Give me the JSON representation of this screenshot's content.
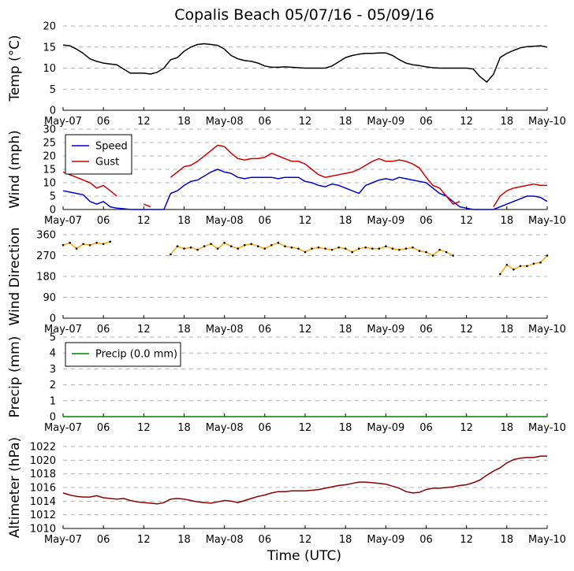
{
  "chart_data": {
    "type": "line",
    "title": "Copalis Beach 05/07/16 - 05/09/16",
    "xlabel": "Time (UTC)",
    "x_ticks": [
      "May-07",
      "06",
      "12",
      "18",
      "May-08",
      "06",
      "12",
      "18",
      "May-09",
      "06",
      "12",
      "18",
      "May-10"
    ],
    "x_tick_hours": [
      0,
      6,
      12,
      18,
      24,
      30,
      36,
      42,
      48,
      54,
      60,
      66,
      72
    ],
    "x_range_hours": [
      0,
      72
    ],
    "panels": [
      {
        "id": "temp",
        "ylabel": "Temp (°C)",
        "ylim": [
          0,
          20
        ],
        "yticks": [
          "0",
          "5",
          "10",
          "15",
          "20"
        ],
        "ytick_values": [
          0,
          5,
          10,
          15,
          20
        ],
        "series": [
          {
            "name": "Temp",
            "color": "#000000",
            "x": [
              0,
              1,
              2,
              3,
              4,
              5,
              6,
              7,
              8,
              9,
              10,
              11,
              12,
              13,
              14,
              15,
              16,
              17,
              18,
              19,
              20,
              21,
              22,
              23,
              24,
              25,
              26,
              27,
              28,
              29,
              30,
              31,
              32,
              33,
              34,
              35,
              36,
              37,
              38,
              39,
              40,
              41,
              42,
              43,
              44,
              45,
              46,
              47,
              48,
              49,
              50,
              51,
              52,
              53,
              54,
              55,
              56,
              57,
              58,
              59,
              60,
              61,
              62,
              63,
              64,
              65,
              66,
              67,
              68,
              69,
              70,
              71,
              72
            ],
            "y": [
              15.5,
              15.3,
              14.5,
              13.5,
              12.2,
              11.6,
              11.2,
              11,
              10.8,
              9.8,
              8.8,
              8.8,
              8.8,
              8.6,
              9,
              10,
              12,
              12.5,
              14,
              15,
              15.6,
              15.8,
              15.6,
              15.4,
              14.5,
              13,
              12.2,
              11.8,
              11.6,
              11.2,
              10.5,
              10.2,
              10.2,
              10.3,
              10.2,
              10.1,
              10,
              10,
              10,
              10,
              10.5,
              11.5,
              12.5,
              13,
              13.3,
              13.5,
              13.5,
              13.6,
              13.6,
              13,
              12,
              11.2,
              10.8,
              10.6,
              10.3,
              10.1,
              10,
              10,
              10,
              10,
              10,
              9.8,
              8,
              6.7,
              8.5,
              12.5,
              13.5,
              14.2,
              14.8,
              15.1,
              15.2,
              15.3,
              15
            ]
          }
        ]
      },
      {
        "id": "wind",
        "ylabel": "Wind (mph)",
        "ylim": [
          0,
          30
        ],
        "yticks": [
          "0",
          "5",
          "10",
          "15",
          "20",
          "25",
          "30"
        ],
        "ytick_values": [
          0,
          5,
          10,
          15,
          20,
          25,
          30
        ],
        "legend": {
          "location": "upper-left",
          "entries": [
            "Speed",
            "Gust"
          ]
        },
        "series": [
          {
            "name": "Speed",
            "color": "#0000cc",
            "x": [
              0,
              1,
              2,
              3,
              4,
              5,
              6,
              7,
              8,
              9,
              10,
              11,
              12,
              13,
              14,
              15,
              16,
              17,
              18,
              19,
              20,
              21,
              22,
              23,
              24,
              25,
              26,
              27,
              28,
              29,
              30,
              31,
              32,
              33,
              34,
              35,
              36,
              37,
              38,
              39,
              40,
              41,
              42,
              43,
              44,
              45,
              46,
              47,
              48,
              49,
              50,
              51,
              52,
              53,
              54,
              55,
              56,
              57,
              58,
              59,
              60,
              61,
              62,
              63,
              64,
              65,
              66,
              67,
              68,
              69,
              70,
              71,
              72
            ],
            "y": [
              7,
              6.5,
              6,
              5.5,
              3,
              2,
              3,
              1,
              0.5,
              0.3,
              0,
              0,
              0,
              0,
              0,
              0,
              6,
              7,
              9,
              10.5,
              11,
              12.5,
              14,
              15,
              14,
              13.5,
              12,
              11.5,
              12,
              12,
              12,
              12,
              11.5,
              12,
              12,
              12,
              10.5,
              10,
              9,
              8.5,
              9.5,
              9,
              8,
              7,
              6,
              9,
              10,
              11,
              11.5,
              11,
              12,
              11.5,
              11,
              10.5,
              10,
              8,
              6,
              5,
              3,
              1,
              0.5,
              0,
              0,
              0,
              0,
              1,
              2,
              3,
              4,
              5,
              5,
              4.5,
              3
            ]
          },
          {
            "name": "Gust",
            "color": "#cc0000",
            "x": [
              0,
              1,
              2,
              3,
              4,
              5,
              6,
              7,
              8,
              9,
              10,
              11,
              12,
              13,
              14,
              15,
              16,
              17,
              18,
              19,
              20,
              21,
              22,
              23,
              24,
              25,
              26,
              27,
              28,
              29,
              30,
              31,
              32,
              33,
              34,
              35,
              36,
              37,
              38,
              39,
              40,
              41,
              42,
              43,
              44,
              45,
              46,
              47,
              48,
              49,
              50,
              51,
              52,
              53,
              54,
              55,
              56,
              57,
              58,
              59,
              60,
              61,
              62,
              63,
              64,
              65,
              66,
              67,
              68,
              69,
              70,
              71,
              72
            ],
            "y": [
              14,
              13,
              12,
              11,
              10,
              8,
              9,
              7,
              5,
              null,
              null,
              null,
              2,
              1,
              null,
              null,
              12,
              14,
              16,
              16.5,
              18,
              20,
              22,
              24,
              23.5,
              21,
              19,
              18.5,
              19,
              19,
              19.5,
              21,
              20,
              19,
              18,
              18,
              17,
              15,
              13,
              12,
              12.5,
              13,
              13.5,
              14,
              15,
              16.5,
              18,
              19,
              18,
              18,
              18.5,
              18,
              17,
              15.5,
              12,
              9,
              8,
              5,
              2,
              3,
              null,
              null,
              null,
              null,
              1,
              5,
              7,
              8,
              8.5,
              9,
              9.5,
              9,
              9
            ]
          }
        ]
      },
      {
        "id": "wdir",
        "ylabel": "Wind Direction",
        "ylim": [
          0,
          360
        ],
        "yticks": [
          "0",
          "90",
          "180",
          "270",
          "360"
        ],
        "ytick_values": [
          0,
          90,
          180,
          270,
          360
        ],
        "series": [
          {
            "name": "Direction",
            "color": "#ffa500",
            "x": [
              0,
              1,
              2,
              3,
              4,
              5,
              6,
              7,
              8,
              9,
              10,
              11,
              12,
              13,
              14,
              15,
              16,
              17,
              18,
              19,
              20,
              21,
              22,
              23,
              24,
              25,
              26,
              27,
              28,
              29,
              30,
              31,
              32,
              33,
              34,
              35,
              36,
              37,
              38,
              39,
              40,
              41,
              42,
              43,
              44,
              45,
              46,
              47,
              48,
              49,
              50,
              51,
              52,
              53,
              54,
              55,
              56,
              57,
              58,
              59,
              60,
              61,
              62,
              63,
              64,
              65,
              66,
              67,
              68,
              69,
              70,
              71,
              72
            ],
            "y": [
              315,
              325,
              300,
              320,
              315,
              325,
              320,
              330,
              null,
              null,
              null,
              null,
              null,
              null,
              null,
              null,
              275,
              310,
              300,
              305,
              295,
              310,
              320,
              300,
              325,
              310,
              300,
              315,
              320,
              310,
              300,
              315,
              325,
              310,
              305,
              300,
              285,
              300,
              305,
              300,
              295,
              305,
              300,
              285,
              300,
              305,
              300,
              300,
              310,
              300,
              295,
              300,
              305,
              290,
              285,
              270,
              295,
              285,
              270,
              null,
              null,
              null,
              null,
              null,
              null,
              190,
              230,
              210,
              225,
              225,
              235,
              240,
              270
            ]
          }
        ]
      },
      {
        "id": "precip",
        "ylabel": "Precip (mm)",
        "ylim": [
          0,
          5
        ],
        "yticks": [
          "0",
          "1",
          "2",
          "3",
          "4",
          "5"
        ],
        "ytick_values": [
          0,
          1,
          2,
          3,
          4,
          5
        ],
        "legend": {
          "location": "upper-left",
          "entries": [
            "Precip (0.0 mm)"
          ]
        },
        "series": [
          {
            "name": "Precip (0.0 mm)",
            "color": "#008000",
            "x": [
              0,
              72
            ],
            "y": [
              0,
              0
            ]
          }
        ]
      },
      {
        "id": "alt",
        "ylabel": "Altimeter (hPa)",
        "ylim": [
          1010,
          1022
        ],
        "yticks": [
          "1010",
          "1012",
          "1014",
          "1016",
          "1018",
          "1020",
          "1022"
        ],
        "ytick_values": [
          1010,
          1012,
          1014,
          1016,
          1018,
          1020,
          1022
        ],
        "series": [
          {
            "name": "Altimeter",
            "color": "#8b0000",
            "x": [
              0,
              1,
              2,
              3,
              4,
              5,
              6,
              7,
              8,
              9,
              10,
              11,
              12,
              13,
              14,
              15,
              16,
              17,
              18,
              19,
              20,
              21,
              22,
              23,
              24,
              25,
              26,
              27,
              28,
              29,
              30,
              31,
              32,
              33,
              34,
              35,
              36,
              37,
              38,
              39,
              40,
              41,
              42,
              43,
              44,
              45,
              46,
              47,
              48,
              49,
              50,
              51,
              52,
              53,
              54,
              55,
              56,
              57,
              58,
              59,
              60,
              61,
              62,
              63,
              64,
              65,
              66,
              67,
              68,
              69,
              70,
              71,
              72
            ],
            "y": [
              1015.2,
              1014.9,
              1014.7,
              1014.6,
              1014.6,
              1014.8,
              1014.5,
              1014.4,
              1014.3,
              1014.4,
              1014.1,
              1013.9,
              1013.8,
              1013.7,
              1013.6,
              1013.8,
              1014.3,
              1014.4,
              1014.3,
              1014.1,
              1013.9,
              1013.8,
              1013.7,
              1013.9,
              1014.1,
              1014,
              1013.8,
              1014.1,
              1014.4,
              1014.7,
              1014.9,
              1015.2,
              1015.4,
              1015.4,
              1015.5,
              1015.5,
              1015.5,
              1015.6,
              1015.7,
              1015.9,
              1016.1,
              1016.3,
              1016.4,
              1016.6,
              1016.8,
              1016.8,
              1016.7,
              1016.6,
              1016.5,
              1016.2,
              1015.9,
              1015.4,
              1015.2,
              1015.3,
              1015.7,
              1015.9,
              1015.9,
              1016,
              1016.1,
              1016.3,
              1016.4,
              1016.7,
              1017.1,
              1017.8,
              1018.4,
              1018.9,
              1019.6,
              1020.1,
              1020.3,
              1020.4,
              1020.4,
              1020.6,
              1020.6
            ]
          }
        ]
      }
    ]
  }
}
